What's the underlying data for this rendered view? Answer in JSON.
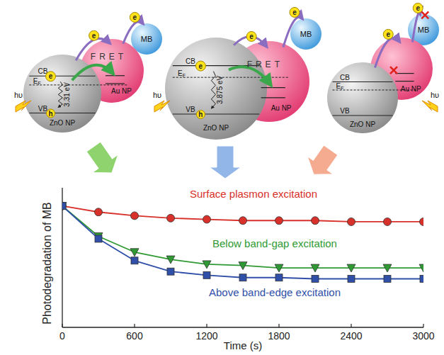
{
  "chart_data": {
    "type": "line",
    "x_label": "Time (s)",
    "y_label": "Photodegradation of MB",
    "x": [
      0,
      300,
      600,
      900,
      1200,
      1500,
      1800,
      2100,
      2400,
      2700,
      3000
    ],
    "xlim": [
      0,
      3000
    ],
    "xticks": [
      0,
      600,
      1200,
      1800,
      2400,
      3000
    ],
    "ylim": [
      0,
      1.15
    ],
    "yticks": [],
    "tick_labels": "x",
    "series": [
      {
        "name": "Surface plasmon excitation",
        "color": "#d8302a",
        "marker": "circle",
        "line_style": "solid",
        "values": [
          1,
          0.95,
          0.92,
          0.9,
          0.89,
          0.88,
          0.88,
          0.88,
          0.87,
          0.87,
          0.87
        ]
      },
      {
        "name": "Below band-gap excitation",
        "color": "#2f9a34",
        "marker": "triangle-down",
        "line_style": "solid",
        "values": [
          1,
          0.75,
          0.62,
          0.56,
          0.52,
          0.51,
          0.49,
          0.49,
          0.49,
          0.49,
          0.49
        ]
      },
      {
        "name": "Above band-edge excitation",
        "color": "#2f4fa8",
        "marker": "square",
        "line_style": "solid",
        "values": [
          1,
          0.73,
          0.55,
          0.46,
          0.43,
          0.41,
          0.41,
          0.4,
          0.4,
          0.4,
          0.4
        ]
      }
    ]
  },
  "diagram": {
    "labels": {
      "cb": "CB",
      "vb": "VB",
      "fermi_main": "E",
      "fermi_sub": "F",
      "photon": "hυ",
      "electron": "e",
      "hole": "h",
      "transfer": "FRET",
      "dye": "MB",
      "metal": "Au NP",
      "semiconductor": "ZnO NP"
    },
    "panels": [
      {
        "gap": "3.31 eV",
        "fret": true
      },
      {
        "gap": "3.875 eV",
        "fret": true
      },
      {
        "fret": false
      }
    ]
  }
}
